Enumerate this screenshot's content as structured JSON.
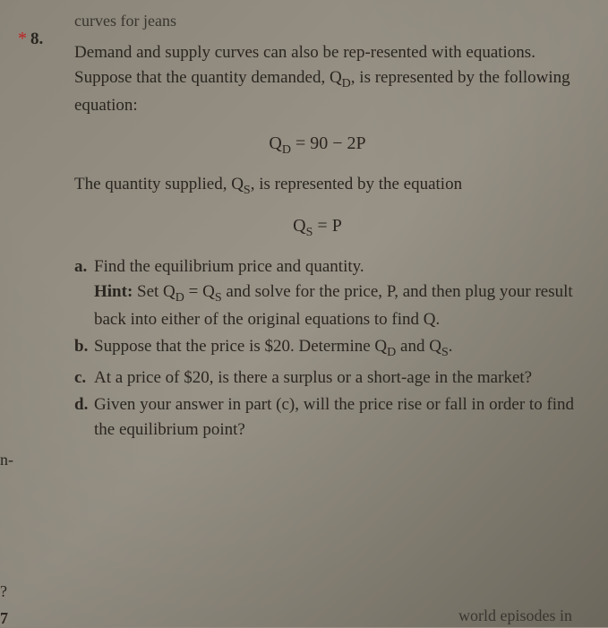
{
  "partial_top": "curves for jeans",
  "problem": {
    "asterisk": "*",
    "number": "8.",
    "intro_para1": "Demand and supply curves can also be rep-resented with equations. Suppose that the quantity demanded, Q",
    "intro_sub1": "D",
    "intro_para1_cont": ", is represented by the following equation:",
    "equation1_lhs": "Q",
    "equation1_sub": "D",
    "equation1_rhs": " = 90 − 2P",
    "intro_para2": "The quantity supplied, Q",
    "intro_sub2": "S",
    "intro_para2_cont": ", is represented by the equation",
    "equation2_lhs": "Q",
    "equation2_sub": "S",
    "equation2_rhs": " = P"
  },
  "subitems": {
    "a": {
      "label": "a.",
      "line1": "Find the equilibrium price and quantity.",
      "hint_label": "Hint:",
      "hint_text1": " Set Q",
      "hint_sub1": "D",
      "hint_text2": " = Q",
      "hint_sub2": "S",
      "hint_text3": " and solve for the price, P, and then plug your result back into either of the original equations to find Q."
    },
    "b": {
      "label": "b.",
      "text1": "Suppose that the price is $20. Determine Q",
      "sub1": "D",
      "text2": " and Q",
      "sub2": "S",
      "text3": "."
    },
    "c": {
      "label": "c.",
      "text": "At a price of $20, is there a surplus or a short-age in the market?"
    },
    "d": {
      "label": "d.",
      "text": "Given your answer in part (c), will the price rise or fall in order to find the equilibrium point?"
    }
  },
  "margins": {
    "n": "n-",
    "q": "?",
    "seven": "7"
  },
  "bottom_partial": "world episodes in"
}
